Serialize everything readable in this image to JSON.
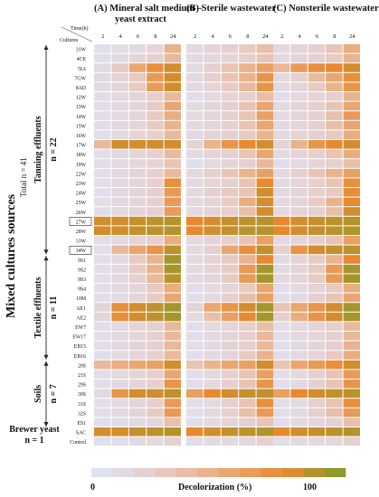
{
  "chart_data": {
    "type": "heatmap",
    "panels": [
      {
        "title": "(A) Mineral salt medium –",
        "title_line2": "yeast  extract"
      },
      {
        "title": "(B) Sterile wastewater"
      },
      {
        "title": "(C) Nonsterile wastewater"
      }
    ],
    "time_axis_label": "Time(h)",
    "cultures_label": "Cultures",
    "times": [
      "2",
      "4",
      "6",
      "8",
      "24"
    ],
    "rows": [
      "31W",
      "4CE",
      "5IA",
      "7GW",
      "8AD",
      "12W",
      "13W",
      "14W",
      "15W",
      "16W",
      "17W",
      "18W",
      "19W",
      "22W",
      "23W",
      "24W",
      "25W",
      "26W",
      "27W",
      "28W",
      "33W",
      "34W",
      "9S1",
      "9S2",
      "9S3",
      "9S4",
      "10M",
      "AE1",
      "AE2",
      "EW7",
      "EW17",
      "EB15",
      "EB16",
      "20S",
      "21S",
      "29S",
      "30S",
      "31S",
      "32S",
      "ES1",
      "SAC",
      "Control"
    ],
    "boxed_rows": [
      "27W",
      "34W"
    ],
    "groups": [
      {
        "label": "Tanning effluents",
        "count_label": "n = 22",
        "first": "31W",
        "last": "34W"
      },
      {
        "label": "Textile effluents",
        "count_label": "n = 11",
        "first": "9S1",
        "last": "EB16"
      },
      {
        "label": "Soils",
        "count_label": "n = 7",
        "first": "20S",
        "last": "ES1"
      },
      {
        "label": "Brewer yeast",
        "count_label": "n = 1",
        "first": "SAC",
        "last": "SAC"
      }
    ],
    "y_super_label": "Mixed cultures sources",
    "total_label": "Total n = 41",
    "colorbar": {
      "label": "Decolorization (%)",
      "min_label": "0",
      "max_label": "100",
      "colors": [
        "#dfe2f1",
        "#e6cfcf",
        "#e9b99b",
        "#e9a063",
        "#e8892f",
        "#8f9a2a"
      ]
    },
    "values_unit": "Decolorization (%)",
    "values": [
      [
        [
          3,
          6,
          8,
          15,
          45
        ],
        [
          10,
          15,
          20,
          25,
          35
        ],
        [
          10,
          15,
          20,
          30,
          50
        ]
      ],
      [
        [
          5,
          10,
          15,
          20,
          40
        ],
        [
          8,
          12,
          15,
          20,
          30
        ],
        [
          10,
          15,
          20,
          25,
          45
        ]
      ],
      [
        [
          10,
          25,
          55,
          75,
          85
        ],
        [
          10,
          20,
          30,
          45,
          60
        ],
        [
          40,
          65,
          75,
          80,
          85
        ]
      ],
      [
        [
          8,
          15,
          25,
          65,
          85
        ],
        [
          10,
          20,
          30,
          45,
          70
        ],
        [
          10,
          20,
          40,
          55,
          75
        ]
      ],
      [
        [
          8,
          15,
          25,
          65,
          85
        ],
        [
          10,
          15,
          25,
          40,
          70
        ],
        [
          10,
          15,
          25,
          45,
          70
        ]
      ],
      [
        [
          5,
          10,
          15,
          20,
          40
        ],
        [
          5,
          10,
          15,
          20,
          35
        ],
        [
          5,
          10,
          15,
          20,
          45
        ]
      ],
      [
        [
          5,
          10,
          15,
          25,
          55
        ],
        [
          10,
          15,
          20,
          30,
          55
        ],
        [
          10,
          15,
          20,
          30,
          55
        ]
      ],
      [
        [
          5,
          10,
          15,
          25,
          50
        ],
        [
          10,
          15,
          20,
          30,
          60
        ],
        [
          10,
          15,
          20,
          35,
          65
        ]
      ],
      [
        [
          5,
          10,
          15,
          25,
          45
        ],
        [
          10,
          15,
          20,
          30,
          55
        ],
        [
          10,
          15,
          20,
          35,
          55
        ]
      ],
      [
        [
          5,
          10,
          15,
          20,
          40
        ],
        [
          10,
          15,
          20,
          25,
          45
        ],
        [
          10,
          15,
          20,
          25,
          50
        ]
      ],
      [
        [
          40,
          85,
          85,
          85,
          85
        ],
        [
          15,
          45,
          70,
          80,
          85
        ],
        [
          15,
          45,
          70,
          80,
          85
        ]
      ],
      [
        [
          5,
          10,
          15,
          20,
          40
        ],
        [
          10,
          15,
          20,
          30,
          55
        ],
        [
          10,
          15,
          20,
          30,
          50
        ]
      ],
      [
        [
          5,
          10,
          12,
          15,
          30
        ],
        [
          5,
          10,
          15,
          20,
          40
        ],
        [
          5,
          10,
          15,
          20,
          35
        ]
      ],
      [
        [
          5,
          10,
          15,
          20,
          40
        ],
        [
          10,
          20,
          30,
          45,
          60
        ],
        [
          10,
          20,
          30,
          45,
          60
        ]
      ],
      [
        [
          5,
          10,
          15,
          20,
          75
        ],
        [
          10,
          15,
          20,
          30,
          80
        ],
        [
          10,
          15,
          20,
          30,
          75
        ]
      ],
      [
        [
          5,
          10,
          15,
          20,
          65
        ],
        [
          10,
          20,
          25,
          30,
          85
        ],
        [
          10,
          15,
          20,
          25,
          75
        ]
      ],
      [
        [
          5,
          10,
          15,
          20,
          65
        ],
        [
          10,
          15,
          25,
          50,
          85
        ],
        [
          10,
          15,
          25,
          45,
          80
        ]
      ],
      [
        [
          5,
          10,
          15,
          20,
          65
        ],
        [
          10,
          15,
          20,
          35,
          85
        ],
        [
          10,
          15,
          20,
          35,
          85
        ]
      ],
      [
        [
          85,
          85,
          88,
          90,
          92
        ],
        [
          80,
          85,
          88,
          90,
          92
        ],
        [
          80,
          85,
          88,
          90,
          92
        ]
      ],
      [
        [
          85,
          85,
          88,
          90,
          92
        ],
        [
          80,
          85,
          88,
          90,
          92
        ],
        [
          80,
          85,
          88,
          90,
          92
        ]
      ],
      [
        [
          5,
          10,
          15,
          20,
          50
        ],
        [
          10,
          15,
          20,
          30,
          60
        ],
        [
          10,
          15,
          20,
          30,
          60
        ]
      ],
      [
        [
          5,
          40,
          55,
          70,
          90
        ],
        [
          10,
          20,
          55,
          75,
          90
        ],
        [
          20,
          70,
          85,
          88,
          90
        ]
      ],
      [
        [
          5,
          10,
          25,
          45,
          95
        ],
        [
          10,
          15,
          25,
          45,
          80
        ],
        [
          10,
          15,
          25,
          45,
          80
        ]
      ],
      [
        [
          5,
          10,
          25,
          45,
          95
        ],
        [
          10,
          15,
          25,
          65,
          95
        ],
        [
          10,
          15,
          25,
          65,
          95
        ]
      ],
      [
        [
          5,
          10,
          20,
          40,
          90
        ],
        [
          10,
          15,
          25,
          65,
          95
        ],
        [
          10,
          15,
          25,
          65,
          95
        ]
      ],
      [
        [
          5,
          10,
          15,
          25,
          50
        ],
        [
          5,
          10,
          15,
          25,
          55
        ],
        [
          5,
          10,
          15,
          25,
          50
        ]
      ],
      [
        [
          5,
          10,
          15,
          25,
          55
        ],
        [
          5,
          10,
          20,
          35,
          60
        ],
        [
          5,
          10,
          20,
          30,
          55
        ]
      ],
      [
        [
          15,
          75,
          85,
          90,
          95
        ],
        [
          15,
          55,
          70,
          85,
          95
        ],
        [
          30,
          55,
          70,
          85,
          95
        ]
      ],
      [
        [
          15,
          75,
          85,
          90,
          95
        ],
        [
          10,
          35,
          60,
          80,
          95
        ],
        [
          20,
          50,
          70,
          85,
          95
        ]
      ],
      [
        [
          5,
          10,
          15,
          20,
          40
        ],
        [
          5,
          10,
          15,
          20,
          35
        ],
        [
          5,
          10,
          15,
          20,
          40
        ]
      ],
      [
        [
          5,
          10,
          15,
          20,
          40
        ],
        [
          5,
          10,
          15,
          20,
          40
        ],
        [
          5,
          10,
          15,
          20,
          40
        ]
      ],
      [
        [
          5,
          10,
          15,
          20,
          40
        ],
        [
          5,
          10,
          15,
          20,
          40
        ],
        [
          5,
          10,
          15,
          20,
          45
        ]
      ],
      [
        [
          5,
          10,
          15,
          20,
          40
        ],
        [
          5,
          10,
          15,
          25,
          45
        ],
        [
          5,
          10,
          15,
          25,
          50
        ]
      ],
      [
        [
          40,
          50,
          55,
          60,
          85
        ],
        [
          30,
          45,
          55,
          60,
          85
        ],
        [
          30,
          55,
          65,
          75,
          85
        ]
      ],
      [
        [
          5,
          10,
          15,
          20,
          55
        ],
        [
          5,
          10,
          20,
          30,
          60
        ],
        [
          5,
          10,
          20,
          30,
          65
        ]
      ],
      [
        [
          5,
          10,
          15,
          20,
          70
        ],
        [
          5,
          10,
          20,
          30,
          70
        ],
        [
          5,
          10,
          20,
          30,
          70
        ]
      ],
      [
        [
          10,
          70,
          85,
          85,
          90
        ],
        [
          60,
          80,
          85,
          88,
          90
        ],
        [
          60,
          80,
          85,
          88,
          90
        ]
      ],
      [
        [
          5,
          10,
          15,
          20,
          65
        ],
        [
          5,
          10,
          20,
          30,
          75
        ],
        [
          5,
          10,
          20,
          30,
          75
        ]
      ],
      [
        [
          5,
          10,
          15,
          25,
          65
        ],
        [
          5,
          10,
          20,
          35,
          65
        ],
        [
          5,
          10,
          20,
          35,
          65
        ]
      ],
      [
        [
          3,
          5,
          8,
          12,
          35
        ],
        [
          5,
          10,
          15,
          20,
          30
        ],
        [
          5,
          10,
          12,
          18,
          35
        ]
      ],
      [
        [
          85,
          85,
          88,
          90,
          92
        ],
        [
          80,
          85,
          88,
          90,
          92
        ],
        [
          80,
          85,
          88,
          90,
          92
        ]
      ],
      [
        [
          3,
          5,
          8,
          10,
          20
        ],
        [
          5,
          8,
          10,
          12,
          20
        ],
        [
          5,
          8,
          10,
          12,
          20
        ]
      ]
    ]
  }
}
